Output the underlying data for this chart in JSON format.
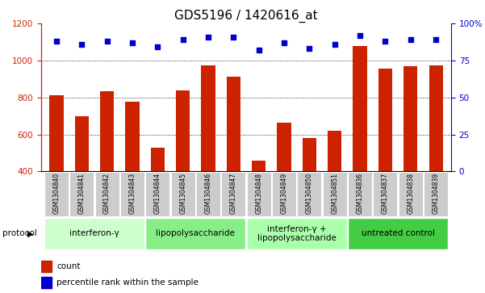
{
  "title": "GDS5196 / 1420616_at",
  "samples": [
    "GSM1304840",
    "GSM1304841",
    "GSM1304842",
    "GSM1304843",
    "GSM1304844",
    "GSM1304845",
    "GSM1304846",
    "GSM1304847",
    "GSM1304848",
    "GSM1304849",
    "GSM1304850",
    "GSM1304851",
    "GSM1304836",
    "GSM1304837",
    "GSM1304838",
    "GSM1304839"
  ],
  "counts": [
    810,
    700,
    835,
    775,
    530,
    840,
    975,
    910,
    460,
    665,
    580,
    620,
    1080,
    955,
    970,
    975
  ],
  "percentile_ranks": [
    88,
    86,
    88,
    87,
    84,
    89,
    91,
    91,
    82,
    87,
    83,
    86,
    92,
    88,
    89,
    89
  ],
  "groups": [
    {
      "label": "interferon-γ",
      "start": 0,
      "end": 4,
      "color": "#ccffcc"
    },
    {
      "label": "lipopolysaccharide",
      "start": 4,
      "end": 8,
      "color": "#88ee88"
    },
    {
      "label": "interferon-γ +\nlipopolysaccharide",
      "start": 8,
      "end": 12,
      "color": "#aaffaa"
    },
    {
      "label": "untreated control",
      "start": 12,
      "end": 16,
      "color": "#44cc44"
    }
  ],
  "ylim_left": [
    400,
    1200
  ],
  "ylim_right": [
    0,
    100
  ],
  "yticks_left": [
    400,
    600,
    800,
    1000,
    1200
  ],
  "yticks_right": [
    0,
    25,
    50,
    75,
    100
  ],
  "bar_color": "#cc2200",
  "dot_color": "#0000cc",
  "grid_color": "#000000",
  "label_bg": "#cccccc",
  "protocol_label": "protocol",
  "legend_count": "count",
  "legend_pct": "percentile rank within the sample",
  "title_fontsize": 11,
  "tick_fontsize": 7.5,
  "group_fontsize": 7.5,
  "sample_fontsize": 5.5
}
